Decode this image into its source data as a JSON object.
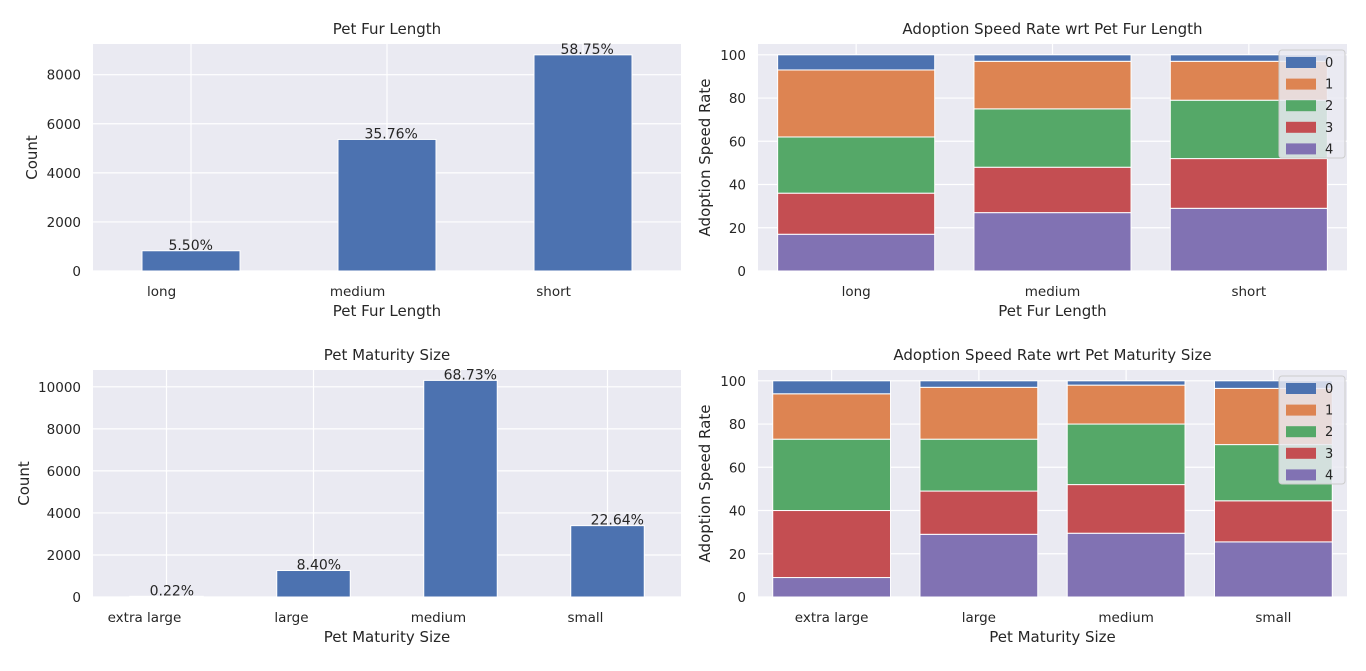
{
  "chart_data": [
    {
      "type": "bar",
      "title": "Pet Fur Length",
      "xlabel": "Pet Fur Length",
      "ylabel": "Count",
      "categories": [
        "long",
        "medium",
        "short"
      ],
      "values": [
        825,
        5361,
        8808
      ],
      "data_labels": [
        "5.50%",
        "35.76%",
        "58.75%"
      ],
      "ylim": [
        0,
        9250
      ],
      "yticks": [
        0,
        2000,
        4000,
        6000,
        8000
      ],
      "color": "#4c72b0",
      "grid": true
    },
    {
      "type": "bar",
      "stacked": true,
      "title": "Adoption Speed Rate wrt Pet Fur Length",
      "xlabel": "Pet Fur Length",
      "ylabel": "Adoption Speed Rate",
      "categories": [
        "long",
        "medium",
        "short"
      ],
      "ylim": [
        0,
        105
      ],
      "yticks": [
        0,
        20,
        40,
        60,
        80,
        100
      ],
      "legend_position": "top-right",
      "series": [
        {
          "name": "4",
          "color": "#8172b3",
          "values": [
            17,
            27,
            29
          ]
        },
        {
          "name": "3",
          "color": "#c44e52",
          "values": [
            19,
            21,
            23
          ]
        },
        {
          "name": "2",
          "color": "#55a868",
          "values": [
            26,
            27,
            27
          ]
        },
        {
          "name": "1",
          "color": "#dd8452",
          "values": [
            31,
            22,
            18
          ]
        },
        {
          "name": "0",
          "color": "#4c72b0",
          "values": [
            7,
            3,
            3
          ]
        }
      ],
      "grid": true
    },
    {
      "type": "bar",
      "title": "Pet Maturity Size",
      "xlabel": "Pet Maturity Size",
      "ylabel": "Count",
      "categories": [
        "extra large",
        "large",
        "medium",
        "small"
      ],
      "values": [
        33,
        1260,
        10305,
        3395
      ],
      "data_labels": [
        "0.22%",
        "8.40%",
        "68.73%",
        "22.64%"
      ],
      "ylim": [
        0,
        10800
      ],
      "yticks": [
        0,
        2000,
        4000,
        6000,
        8000,
        10000
      ],
      "color": "#4c72b0",
      "grid": true
    },
    {
      "type": "bar",
      "stacked": true,
      "title": "Adoption Speed Rate wrt Pet Maturity Size",
      "xlabel": "Pet Maturity Size",
      "ylabel": "Adoption Speed Rate",
      "categories": [
        "extra large",
        "large",
        "medium",
        "small"
      ],
      "ylim": [
        0,
        105
      ],
      "yticks": [
        0,
        20,
        40,
        60,
        80,
        100
      ],
      "legend_position": "top-right",
      "series": [
        {
          "name": "4",
          "color": "#8172b3",
          "values": [
            9,
            29,
            29.5,
            25.5
          ]
        },
        {
          "name": "3",
          "color": "#c44e52",
          "values": [
            31,
            20,
            22.5,
            19
          ]
        },
        {
          "name": "2",
          "color": "#55a868",
          "values": [
            33,
            24,
            28,
            26
          ]
        },
        {
          "name": "1",
          "color": "#dd8452",
          "values": [
            21,
            24,
            18,
            26
          ]
        },
        {
          "name": "0",
          "color": "#4c72b0",
          "values": [
            6,
            3,
            2,
            3.5
          ]
        }
      ],
      "grid": true
    }
  ]
}
